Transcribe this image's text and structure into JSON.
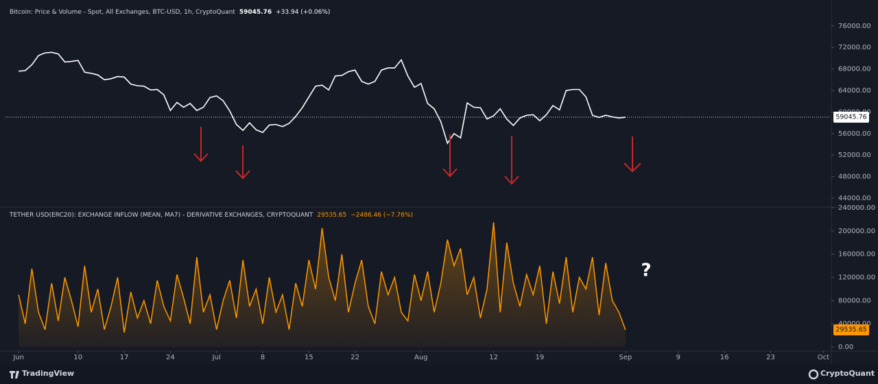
{
  "chart_data": [
    {
      "type": "line",
      "title": "Bitcoin: Price & Volume - Spot, All Exchanges, BTC-USD, 1h, CryptoQuant",
      "change": "+33.94 (+0.06%)",
      "color": "#ffffff",
      "x": [
        "Jun 1",
        "Jun 2",
        "Jun 3",
        "Jun 4",
        "Jun 5",
        "Jun 6",
        "Jun 7",
        "Jun 8",
        "Jun 9",
        "Jun 10",
        "Jun 11",
        "Jun 12",
        "Jun 13",
        "Jun 14",
        "Jun 15",
        "Jun 16",
        "Jun 17",
        "Jun 18",
        "Jun 19",
        "Jun 20",
        "Jun 21",
        "Jun 22",
        "Jun 23",
        "Jun 24",
        "Jun 25",
        "Jun 26",
        "Jun 27",
        "Jun 28",
        "Jun 29",
        "Jun 30",
        "Jul 1",
        "Jul 2",
        "Jul 3",
        "Jul 4",
        "Jul 5",
        "Jul 6",
        "Jul 7",
        "Jul 8",
        "Jul 9",
        "Jul 10",
        "Jul 11",
        "Jul 12",
        "Jul 13",
        "Jul 14",
        "Jul 15",
        "Jul 16",
        "Jul 17",
        "Jul 18",
        "Jul 19",
        "Jul 20",
        "Jul 21",
        "Jul 22",
        "Jul 23",
        "Jul 24",
        "Jul 25",
        "Jul 26",
        "Jul 27",
        "Jul 28",
        "Jul 29",
        "Jul 30",
        "Jul 31",
        "Aug 1",
        "Aug 2",
        "Aug 3",
        "Aug 4",
        "Aug 5",
        "Aug 6",
        "Aug 7",
        "Aug 8",
        "Aug 9",
        "Aug 10",
        "Aug 11",
        "Aug 12",
        "Aug 13",
        "Aug 14",
        "Aug 15",
        "Aug 16",
        "Aug 17",
        "Aug 18",
        "Aug 19",
        "Aug 20",
        "Aug 21",
        "Aug 22",
        "Aug 23",
        "Aug 24",
        "Aug 25",
        "Aug 26",
        "Aug 27",
        "Aug 28",
        "Aug 29",
        "Aug 30",
        "Aug 31",
        "Sep 1"
      ],
      "values": [
        67600,
        67700,
        68800,
        70500,
        71000,
        71100,
        70800,
        69300,
        69400,
        69600,
        67400,
        67200,
        66900,
        66000,
        66200,
        66600,
        66500,
        65200,
        64900,
        64800,
        64100,
        64200,
        63200,
        60300,
        61800,
        60900,
        61600,
        60300,
        60900,
        62700,
        63000,
        62100,
        60200,
        57700,
        56600,
        58000,
        56700,
        56200,
        57600,
        57700,
        57300,
        57900,
        59200,
        60800,
        62800,
        64800,
        65000,
        64100,
        66700,
        66800,
        67500,
        67800,
        65700,
        65200,
        65700,
        67800,
        68200,
        68200,
        69700,
        66700,
        64600,
        65300,
        61600,
        60600,
        58200,
        54200,
        56000,
        55200,
        61700,
        60900,
        60800,
        58700,
        59300,
        60600,
        58700,
        57500,
        58900,
        59400,
        59500,
        58400,
        59500,
        61200,
        60400,
        64000,
        64200,
        64200,
        62800,
        59400,
        59000,
        59400,
        59100,
        58900,
        59045.76
      ],
      "xlim": [
        "May 30",
        "Oct 2"
      ],
      "ylim": [
        42600,
        79800
      ],
      "yticks": [
        {
          "value": 44000,
          "label": "44000.00"
        },
        {
          "value": 48000,
          "label": "48000.00"
        },
        {
          "value": 52000,
          "label": "52000.00"
        },
        {
          "value": 56000,
          "label": "56000.00"
        },
        {
          "value": 60000,
          "label": "60000.00"
        },
        {
          "value": 64000,
          "label": "64000.00"
        },
        {
          "value": 68000,
          "label": "68000.00"
        },
        {
          "value": 72000,
          "label": "72000.00"
        },
        {
          "value": 76000,
          "label": "76000.00"
        }
      ]
    },
    {
      "type": "area",
      "title": "TETHER USD(ERC20): EXCHANGE INFLOW (MEAN, MA7) - DERIVATIVE EXCHANGES, CRYPTOQUANT",
      "change": "−2486.46 (−7.76%)",
      "color": "#ff9800",
      "annotation": "?",
      "x": [
        "Jun 1",
        "Jun 2",
        "Jun 3",
        "Jun 4",
        "Jun 5",
        "Jun 6",
        "Jun 7",
        "Jun 8",
        "Jun 9",
        "Jun 10",
        "Jun 11",
        "Jun 12",
        "Jun 13",
        "Jun 14",
        "Jun 15",
        "Jun 16",
        "Jun 17",
        "Jun 18",
        "Jun 19",
        "Jun 20",
        "Jun 21",
        "Jun 22",
        "Jun 23",
        "Jun 24",
        "Jun 25",
        "Jun 26",
        "Jun 27",
        "Jun 28",
        "Jun 29",
        "Jun 30",
        "Jul 1",
        "Jul 2",
        "Jul 3",
        "Jul 4",
        "Jul 5",
        "Jul 6",
        "Jul 7",
        "Jul 8",
        "Jul 9",
        "Jul 10",
        "Jul 11",
        "Jul 12",
        "Jul 13",
        "Jul 14",
        "Jul 15",
        "Jul 16",
        "Jul 17",
        "Jul 18",
        "Jul 19",
        "Jul 20",
        "Jul 21",
        "Jul 22",
        "Jul 23",
        "Jul 24",
        "Jul 25",
        "Jul 26",
        "Jul 27",
        "Jul 28",
        "Jul 29",
        "Jul 30",
        "Jul 31",
        "Aug 1",
        "Aug 2",
        "Aug 3",
        "Aug 4",
        "Aug 5",
        "Aug 6",
        "Aug 7",
        "Aug 8",
        "Aug 9",
        "Aug 10",
        "Aug 11",
        "Aug 12",
        "Aug 13",
        "Aug 14",
        "Aug 15",
        "Aug 16",
        "Aug 17",
        "Aug 18",
        "Aug 19",
        "Aug 20",
        "Aug 21",
        "Aug 22",
        "Aug 23",
        "Aug 24",
        "Aug 25",
        "Aug 26",
        "Aug 27",
        "Aug 28",
        "Aug 29",
        "Aug 30",
        "Aug 31",
        "Sep 1"
      ],
      "values": [
        90000,
        40000,
        135000,
        60000,
        30000,
        110000,
        45000,
        120000,
        80000,
        35000,
        140000,
        60000,
        100000,
        30000,
        70000,
        120000,
        25000,
        95000,
        50000,
        80000,
        40000,
        115000,
        70000,
        45000,
        125000,
        85000,
        40000,
        155000,
        60000,
        90000,
        30000,
        80000,
        115000,
        50000,
        150000,
        70000,
        100000,
        40000,
        120000,
        60000,
        90000,
        30000,
        110000,
        70000,
        150000,
        100000,
        205000,
        120000,
        80000,
        160000,
        60000,
        110000,
        150000,
        70000,
        40000,
        130000,
        90000,
        120000,
        60000,
        45000,
        125000,
        80000,
        130000,
        60000,
        110000,
        185000,
        140000,
        170000,
        90000,
        120000,
        50000,
        100000,
        215000,
        60000,
        180000,
        110000,
        70000,
        125000,
        90000,
        140000,
        40000,
        130000,
        75000,
        155000,
        60000,
        120000,
        100000,
        155000,
        55000,
        145000,
        80000,
        60000,
        29535.65
      ],
      "xlim": [
        "May 30",
        "Oct 2"
      ],
      "ylim": [
        -7000,
        240000
      ],
      "yticks": [
        {
          "value": 0,
          "label": "0.00"
        },
        {
          "value": 40000,
          "label": "40000.00"
        },
        {
          "value": 80000,
          "label": "80000.00"
        },
        {
          "value": 120000,
          "label": "120000.00"
        },
        {
          "value": 160000,
          "label": "160000.00"
        },
        {
          "value": 200000,
          "label": "200000.00"
        },
        {
          "value": 240000,
          "label": "240000.00"
        }
      ],
      "xticks": [
        {
          "value": "Jun 1",
          "label": "Jun"
        },
        {
          "value": "Jun 10",
          "label": "10"
        },
        {
          "value": "Jun 17",
          "label": "17"
        },
        {
          "value": "Jun 24",
          "label": "24"
        },
        {
          "value": "Jul 1",
          "label": "Jul"
        },
        {
          "value": "Jul 8",
          "label": "8"
        },
        {
          "value": "Jul 15",
          "label": "15"
        },
        {
          "value": "Jul 22",
          "label": "22"
        },
        {
          "value": "Aug 1",
          "label": "Aug"
        },
        {
          "value": "Aug 12",
          "label": "12"
        },
        {
          "value": "Aug 19",
          "label": "19"
        },
        {
          "value": "Sep 1",
          "label": "Sep"
        },
        {
          "value": "Sep 9",
          "label": "9"
        },
        {
          "value": "Sep 16",
          "label": "16"
        },
        {
          "value": "Sep 23",
          "label": "23"
        },
        {
          "value": "Oct 1",
          "label": "Oct"
        }
      ]
    }
  ],
  "footer": {
    "left": "TradingView",
    "right": "CryptoQuant"
  }
}
